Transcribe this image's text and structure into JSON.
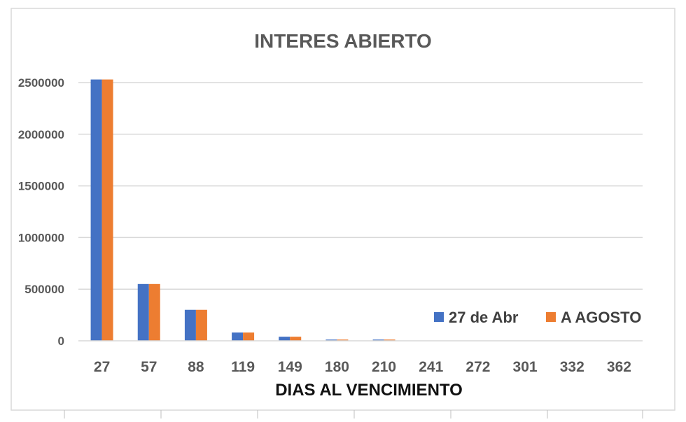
{
  "chart_data": {
    "type": "bar",
    "title": "INTERES ABIERTO",
    "xlabel": "DIAS AL VENCIMIENTO",
    "ylabel": "",
    "categories": [
      "27",
      "57",
      "88",
      "119",
      "149",
      "180",
      "210",
      "241",
      "272",
      "301",
      "332",
      "362"
    ],
    "series": [
      {
        "name": "27 de Abr",
        "color": "#4472C4",
        "values": [
          2530000,
          550000,
          300000,
          80000,
          40000,
          12000,
          12000,
          0,
          0,
          0,
          0,
          0
        ]
      },
      {
        "name": "A AGOSTO",
        "color": "#ED7D31",
        "values": [
          2530000,
          550000,
          300000,
          80000,
          40000,
          12000,
          12000,
          0,
          0,
          0,
          0,
          0
        ]
      }
    ],
    "ylim": [
      0,
      2500000
    ],
    "yticks": [
      "0",
      "500000",
      "1000000",
      "1500000",
      "2000000",
      "2500000"
    ],
    "grid": true,
    "legend_position": "right"
  }
}
